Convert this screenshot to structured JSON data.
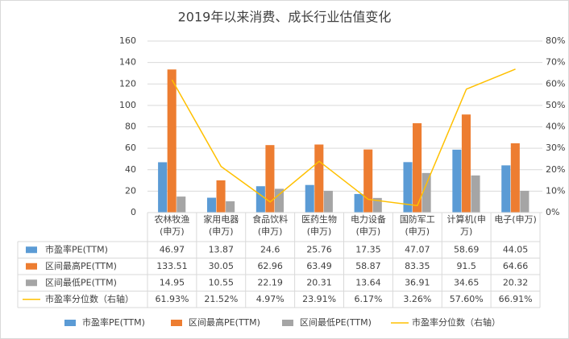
{
  "chart_data": {
    "type": "bar",
    "title": "2019年以来消费、成长行业估值变化",
    "categories": [
      "农林牧渔\n(申万)",
      "家用电器\n(申万)",
      "食品饮料\n(申万)",
      "医药生物\n(申万)",
      "电力设备\n(申万)",
      "国防军工\n(申万)",
      "计算机(申\n万)",
      "电子(申万)"
    ],
    "series": [
      {
        "name": "市盈率PE(TTM)",
        "color": "#5b9bd5",
        "values": [
          46.97,
          13.87,
          24.6,
          25.76,
          17.35,
          47.07,
          58.69,
          44.05
        ]
      },
      {
        "name": "区间最高PE(TTM)",
        "color": "#ed7d31",
        "values": [
          133.51,
          30.05,
          62.96,
          63.49,
          58.87,
          83.35,
          91.5,
          64.66
        ]
      },
      {
        "name": "区间最低PE(TTM)",
        "color": "#a5a5a5",
        "values": [
          14.95,
          10.55,
          22.19,
          20.31,
          13.64,
          36.91,
          34.65,
          20.32
        ]
      },
      {
        "name": "市盈率分位数（右轴）",
        "color": "#ffc000",
        "type": "line",
        "axis": "y2",
        "values": [
          61.93,
          21.52,
          4.97,
          23.91,
          6.17,
          3.26,
          57.6,
          66.91
        ],
        "value_labels": [
          "61.93%",
          "21.52%",
          "4.97%",
          "23.91%",
          "6.17%",
          "3.26%",
          "57.60%",
          "66.91%"
        ]
      }
    ],
    "ylim": [
      0,
      160
    ],
    "yticks": [
      0,
      20,
      40,
      60,
      80,
      100,
      120,
      140,
      160
    ],
    "y2lim": [
      0,
      80
    ],
    "y2ticks": [
      {
        "value": 0,
        "label": "0%"
      },
      {
        "value": 10,
        "label": "10%"
      },
      {
        "value": 20,
        "label": "20%"
      },
      {
        "value": 30,
        "label": "30%"
      },
      {
        "value": 40,
        "label": "40%"
      },
      {
        "value": 50,
        "label": "50%"
      },
      {
        "value": 60,
        "label": "60%"
      },
      {
        "value": 70,
        "label": "70%"
      },
      {
        "value": 80,
        "label": "80%"
      }
    ],
    "grid": true
  }
}
